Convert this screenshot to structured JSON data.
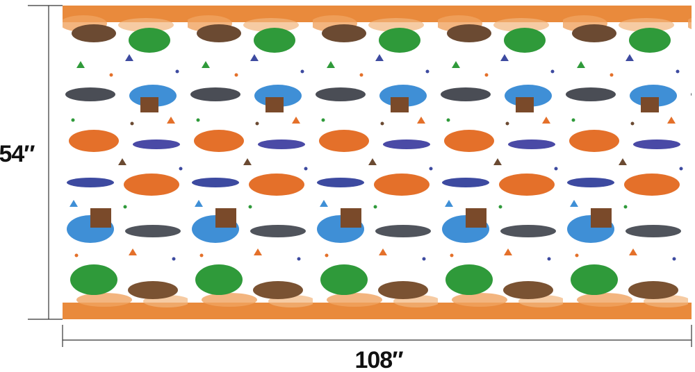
{
  "dimensions": {
    "height": "54″",
    "width": "108″"
  }
}
